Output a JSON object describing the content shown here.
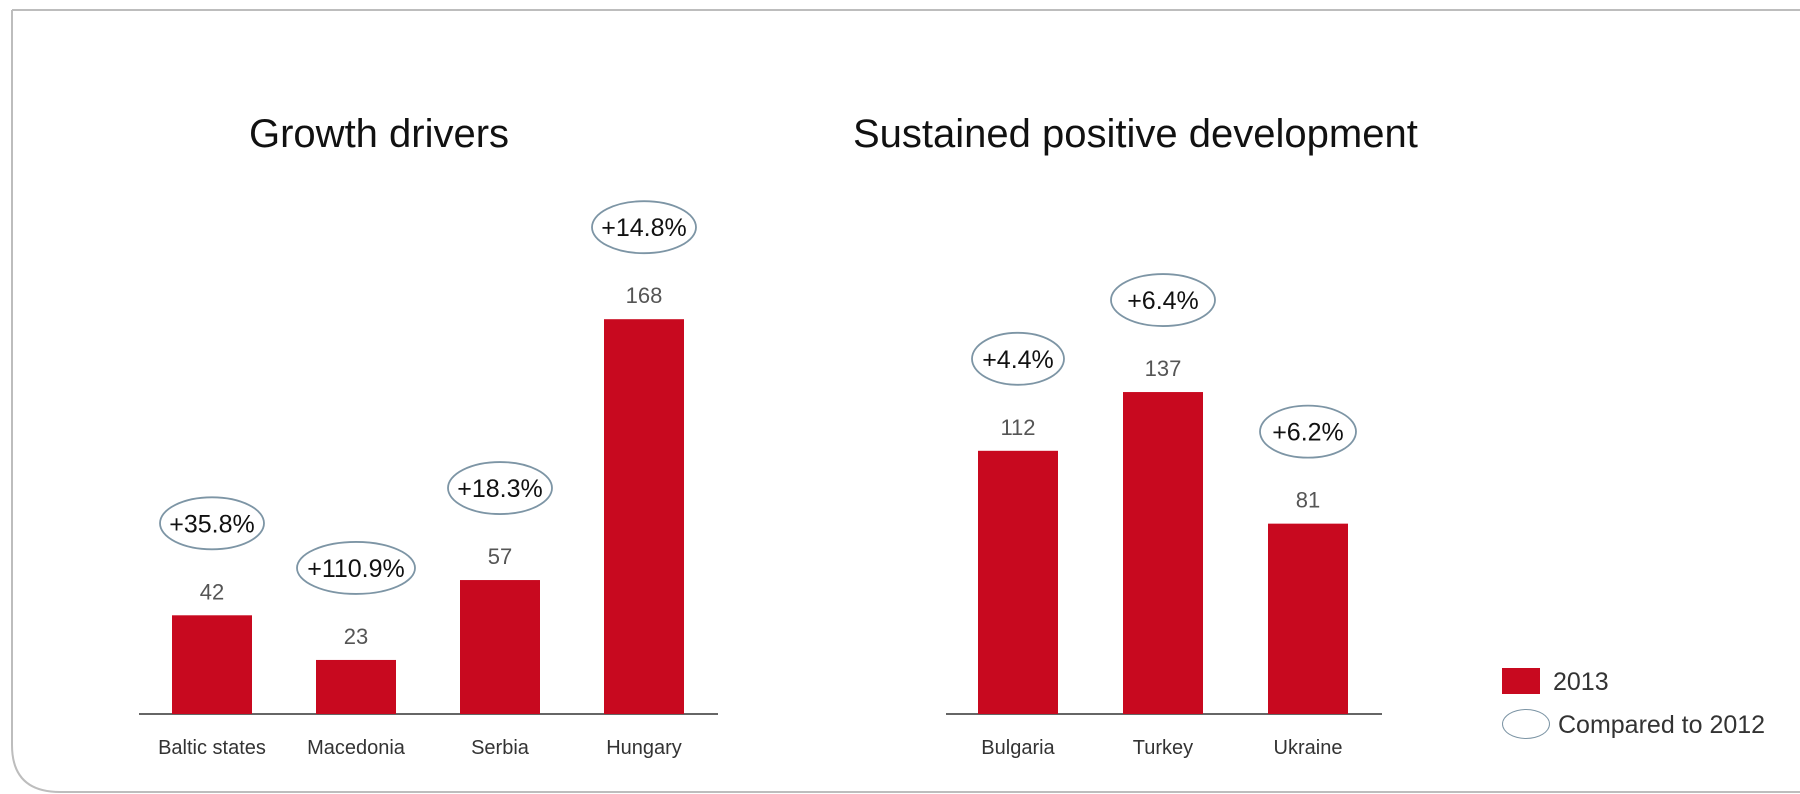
{
  "colors": {
    "bar": "#c8091f",
    "ellipse_stroke": "#7d95a5",
    "axis": "#666666",
    "value_text": "#555555"
  },
  "chart_data": [
    {
      "type": "bar",
      "title": "Growth drivers",
      "categories": [
        "Baltic states",
        "Macedonia",
        "Serbia",
        "Hungary"
      ],
      "series": [
        {
          "name": "2013",
          "values": [
            42,
            23,
            57,
            168
          ]
        }
      ],
      "changes": [
        "+35.8%",
        "+110.9%",
        "+18.3%",
        "+14.8%"
      ],
      "xlabel": "",
      "ylabel": "",
      "grid": false
    },
    {
      "type": "bar",
      "title": "Sustained positive development",
      "categories": [
        "Bulgaria",
        "Turkey",
        "Ukraine"
      ],
      "series": [
        {
          "name": "2013",
          "values": [
            112,
            137,
            81
          ]
        }
      ],
      "changes": [
        "+4.4%",
        "+6.4%",
        "+6.2%"
      ],
      "xlabel": "",
      "ylabel": "",
      "grid": false
    }
  ],
  "legend": {
    "series_label": "2013",
    "compare_label": "Compared to 2012",
    "placement": "bottom-right"
  }
}
